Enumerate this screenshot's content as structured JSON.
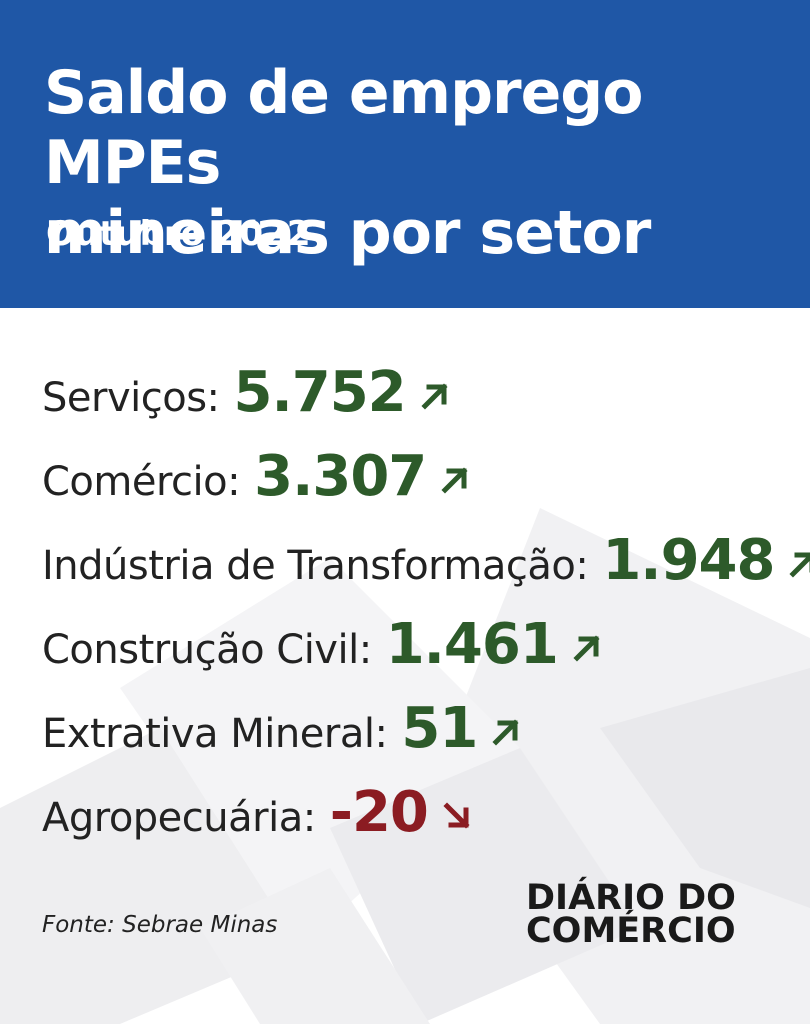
{
  "header": {
    "title_line1": "Saldo de emprego MPEs",
    "title_line2": "mineiras por setor",
    "subtitle": "Outubro 2022"
  },
  "sectors": [
    {
      "label": "Serviços:",
      "value": "5.752",
      "trend": "up"
    },
    {
      "label": "Comércio:",
      "value": "3.307",
      "trend": "up"
    },
    {
      "label": "Indústria de Transformação:",
      "value": "1.948",
      "trend": "up"
    },
    {
      "label": "Construção Civil:",
      "value": "1.461",
      "trend": "up"
    },
    {
      "label": "Extrativa Mineral:",
      "value": "51",
      "trend": "up"
    },
    {
      "label": "Agropecuária:",
      "value": "-20",
      "trend": "down"
    }
  ],
  "source": "Fonte: Sebrae Minas",
  "logo": {
    "line1": "DIÁRIO DO",
    "line2": "COMÉRCIO"
  },
  "colors": {
    "header": "#1f57a6",
    "positive": "#2d5a2a",
    "negative": "#8b1c22"
  },
  "icons": {
    "up": "arrow-up-right-icon",
    "down": "arrow-down-right-icon"
  }
}
